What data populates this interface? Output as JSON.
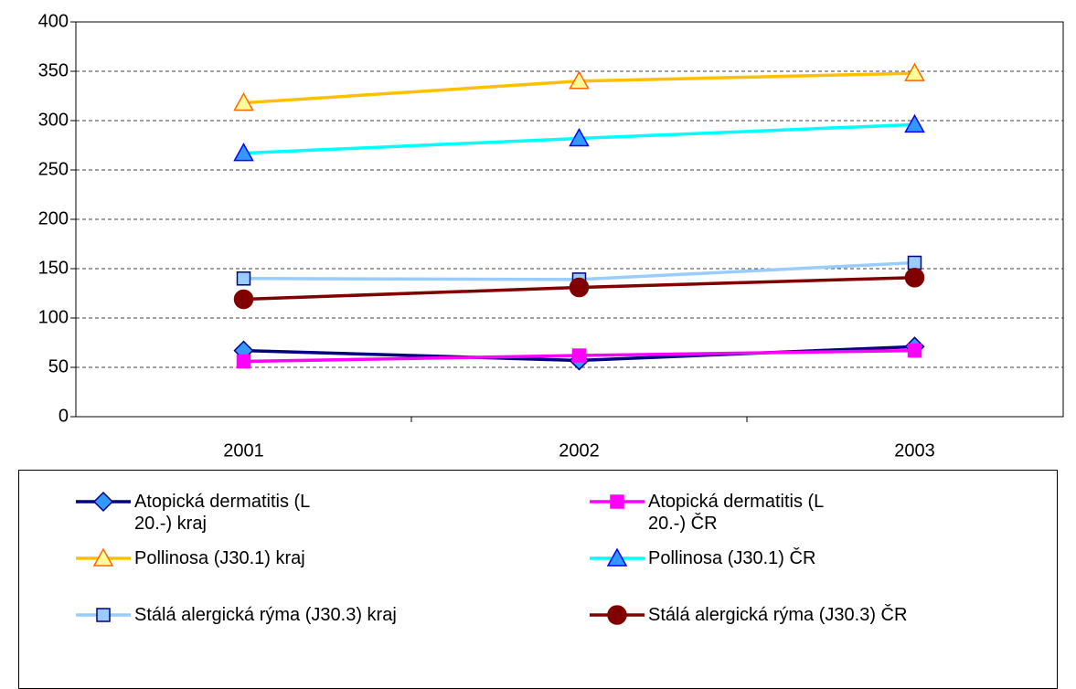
{
  "chart_data": {
    "type": "line",
    "categories": [
      "2001",
      "2002",
      "2003"
    ],
    "ylim": [
      0,
      400
    ],
    "yticks": [
      0,
      50,
      100,
      150,
      200,
      250,
      300,
      350,
      400
    ],
    "grid": true,
    "series": [
      {
        "name": "Atopická dermatitis (L 20.-) kraj",
        "color": "#000080",
        "marker": "diamond",
        "marker_fill": "#3399ff",
        "values": [
          67,
          57,
          71
        ]
      },
      {
        "name": "Atopická dermatitis (L 20.-) ČR",
        "color": "#ff00ff",
        "marker": "square",
        "marker_fill": "#ff00ff",
        "values": [
          56,
          62,
          67
        ]
      },
      {
        "name": "Pollinosa (J30.1) kraj",
        "color": "#ffc000",
        "marker": "triangle",
        "marker_fill": "#ffff99",
        "values": [
          318,
          340,
          348
        ]
      },
      {
        "name": "Pollinosa (J30.1) ČR",
        "color": "#00ffff",
        "marker": "triangle",
        "marker_fill": "#3399ff",
        "values": [
          267,
          282,
          296
        ]
      },
      {
        "name": "Stálá alergická rýma (J30.3) kraj",
        "color": "#99ccff",
        "marker": "square",
        "marker_fill": "#99ccff",
        "values": [
          140,
          139,
          156
        ]
      },
      {
        "name": "Stálá alergická rýma (J30.3) ČR",
        "color": "#800000",
        "marker": "circle",
        "marker_fill": "#800000",
        "values": [
          119,
          131,
          141
        ]
      }
    ]
  }
}
